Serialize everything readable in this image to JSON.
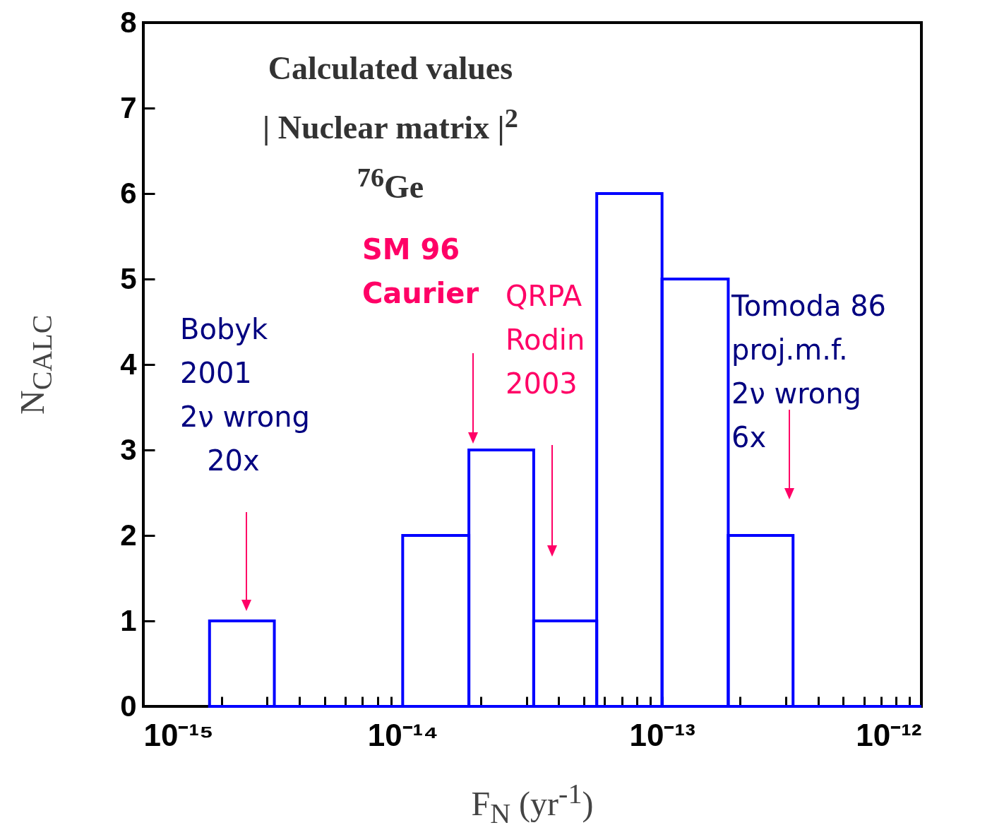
{
  "chart_data": {
    "type": "histogram",
    "title": "Calculated values",
    "subtitle": "| Nuclear matrix |$^{2}$\n$^{76}$Ge",
    "xlabel": "F$_{N}$ (yr$^{-1}$)",
    "ylabel": "N$_{CALC}$",
    "bins": [
      1.8e-15,
      3.2e-15,
      1e-14,
      1.8e-14,
      3.2e-14,
      5.6e-14,
      1e-13,
      1.8e-13,
      3.2e-13,
      1e-12
    ],
    "values": [
      1,
      0,
      2,
      3,
      1,
      6,
      5,
      2,
      0
    ],
    "color": "#0000ff",
    "log": "x",
    "grid": false,
    "xlim": [
      1e-15,
      1e-12
    ],
    "ylim": [
      0,
      8
    ],
    "xticks": [
      {
        "value": 1e-15,
        "label": "10⁻¹⁵"
      },
      {
        "value": 2e-15,
        "label": null
      },
      {
        "value": 3e-15,
        "label": null
      },
      {
        "value": 4e-15,
        "label": null
      },
      {
        "value": 5e-15,
        "label": null
      },
      {
        "value": 6e-15,
        "label": null
      },
      {
        "value": 7e-15,
        "label": null
      },
      {
        "value": 8e-15,
        "label": null
      },
      {
        "value": 9e-15,
        "label": null
      },
      {
        "value": 1e-14,
        "label": "10⁻¹⁴"
      },
      {
        "value": 2e-14,
        "label": null
      },
      {
        "value": 3e-14,
        "label": null
      },
      {
        "value": 4e-14,
        "label": null
      },
      {
        "value": 5e-14,
        "label": null
      },
      {
        "value": 6e-14,
        "label": null
      },
      {
        "value": 7e-14,
        "label": null
      },
      {
        "value": 8e-14,
        "label": null
      },
      {
        "value": 9e-14,
        "label": null
      },
      {
        "value": 1e-13,
        "label": "10⁻¹³"
      },
      {
        "value": 2e-13,
        "label": null
      },
      {
        "value": 3e-13,
        "label": null
      },
      {
        "value": 4e-13,
        "label": null
      },
      {
        "value": 5e-13,
        "label": null
      },
      {
        "value": 6e-13,
        "label": null
      },
      {
        "value": 7e-13,
        "label": null
      },
      {
        "value": 8e-13,
        "label": null
      },
      {
        "value": 9e-13,
        "label": null
      },
      {
        "value": 1e-12,
        "label": "10⁻¹²"
      }
    ],
    "yticks": [
      0,
      1,
      2,
      3,
      4,
      5,
      6,
      7,
      8
    ],
    "annotations": [
      "Bobyk\n2001\n2ν wrong\n   20x",
      "SM 96\nCaurier",
      "QRPA\nRodin\n2003",
      "Tomoda 86\nproj.m.f.\n2ν wrong\n6x"
    ]
  }
}
